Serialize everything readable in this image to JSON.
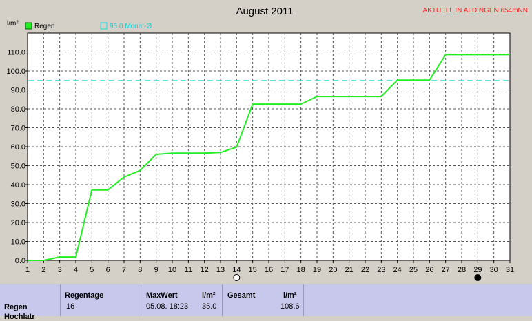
{
  "header": {
    "title": "August 2011",
    "station": "AKTUELL IN ALDINGEN 654mNN",
    "y_unit": "l/m²"
  },
  "legend": {
    "rain_label": "Regen",
    "monthly_label": "95.0 Monat-Ø"
  },
  "colors": {
    "rain": "#22ee22",
    "monthly": "#22dddd",
    "station": "#ff2020",
    "plot_bg": "#ffffff"
  },
  "moon_icons": [
    "full-moon-icon",
    "new-moon-icon"
  ],
  "chart_data": {
    "type": "line",
    "title": "August 2011",
    "ylabel": "l/m²",
    "xlabel": "",
    "xlim": [
      1,
      31
    ],
    "ylim": [
      0,
      120
    ],
    "grid": true,
    "legend_position": "top-left",
    "x_ticks": [
      "1",
      "2",
      "3",
      "4",
      "5",
      "6",
      "7",
      "8",
      "9",
      "10",
      "11",
      "12",
      "13",
      "14",
      "15",
      "16",
      "17",
      "18",
      "19",
      "20",
      "21",
      "22",
      "23",
      "24",
      "25",
      "26",
      "27",
      "28",
      "29",
      "30",
      "31"
    ],
    "y_ticks": [
      "0.0",
      "10.0",
      "20.0",
      "30.0",
      "40.0",
      "50.0",
      "60.0",
      "70.0",
      "80.0",
      "90.0",
      "100.0",
      "110.0"
    ],
    "series": [
      {
        "name": "Regen",
        "x": [
          1,
          2,
          3,
          4,
          5,
          6,
          7,
          8,
          9,
          10,
          11,
          12,
          13,
          14,
          15,
          16,
          17,
          18,
          19,
          20,
          21,
          22,
          23,
          24,
          25,
          26,
          27,
          28,
          29,
          30,
          31
        ],
        "y": [
          0.0,
          0.0,
          1.8,
          1.8,
          37.2,
          37.2,
          44.0,
          47.5,
          56.0,
          56.6,
          56.6,
          56.6,
          57.0,
          59.8,
          82.5,
          82.5,
          82.5,
          82.5,
          86.5,
          86.5,
          86.5,
          86.5,
          86.5,
          95.2,
          95.2,
          95.2,
          108.6,
          108.6,
          108.6,
          108.6,
          108.6
        ]
      }
    ],
    "reference_line": {
      "name": "95.0 Monat-Ø",
      "value": 95.0
    },
    "moon_phases": [
      {
        "day": 14,
        "phase": "full"
      },
      {
        "day": 29,
        "phase": "new"
      }
    ]
  },
  "stats": {
    "row_label": "Regen",
    "row_label_2": "Hochlatr",
    "regentage_header": "Regentage",
    "regentage_value": "16",
    "maxwert_header": "MaxWert",
    "maxwert_unit": "l/m²",
    "maxwert_date": "05.08.  18:23",
    "maxwert_value": "35.0",
    "gesamt_header": "Gesamt",
    "gesamt_unit": "l/m²",
    "gesamt_value": "108.6"
  }
}
